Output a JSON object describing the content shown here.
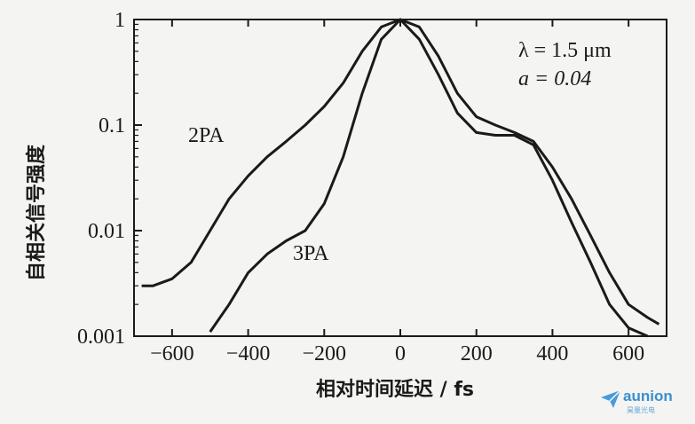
{
  "chart_data": {
    "type": "line",
    "title": "",
    "xlabel": "相对时间延迟 / fs",
    "ylabel": "自相关信号强度",
    "x_ticks": [
      -600,
      -400,
      -200,
      0,
      200,
      400,
      600
    ],
    "x_tick_labels": [
      "−600",
      "−400",
      "−200",
      "0",
      "200",
      "400",
      "600"
    ],
    "y_scale": "log",
    "y_ticks": [
      0.001,
      0.01,
      0.1,
      1
    ],
    "y_tick_labels": [
      "0.001",
      "0.01",
      "0.1",
      "1"
    ],
    "xlim": [
      -700,
      700
    ],
    "ylim": [
      0.001,
      1
    ],
    "grid": false,
    "annotations": {
      "params_line1": "λ = 1.5 μm",
      "params_line2": "a = 0.04"
    },
    "series": [
      {
        "name": "2PA",
        "x": [
          -680,
          -650,
          -600,
          -550,
          -500,
          -450,
          -400,
          -350,
          -300,
          -250,
          -200,
          -150,
          -100,
          -50,
          0,
          50,
          100,
          150,
          200,
          250,
          300,
          350,
          400,
          450,
          500,
          550,
          600,
          650,
          680
        ],
        "y": [
          0.003,
          0.003,
          0.0035,
          0.005,
          0.01,
          0.02,
          0.033,
          0.05,
          0.07,
          0.1,
          0.15,
          0.25,
          0.5,
          0.85,
          1.0,
          0.85,
          0.45,
          0.2,
          0.12,
          0.1,
          0.085,
          0.07,
          0.04,
          0.02,
          0.009,
          0.004,
          0.002,
          0.0015,
          0.0013
        ]
      },
      {
        "name": "3PA",
        "x": [
          -500,
          -450,
          -400,
          -350,
          -300,
          -250,
          -200,
          -150,
          -100,
          -50,
          0,
          50,
          100,
          150,
          200,
          250,
          300,
          350,
          400,
          450,
          500,
          550,
          600,
          650
        ],
        "y": [
          0.0011,
          0.002,
          0.004,
          0.006,
          0.008,
          0.01,
          0.018,
          0.05,
          0.2,
          0.65,
          1.0,
          0.65,
          0.3,
          0.13,
          0.085,
          0.08,
          0.08,
          0.065,
          0.03,
          0.012,
          0.005,
          0.002,
          0.0012,
          0.001
        ]
      }
    ]
  },
  "watermark": {
    "brand": "aunion",
    "sub": "昊量光电"
  }
}
